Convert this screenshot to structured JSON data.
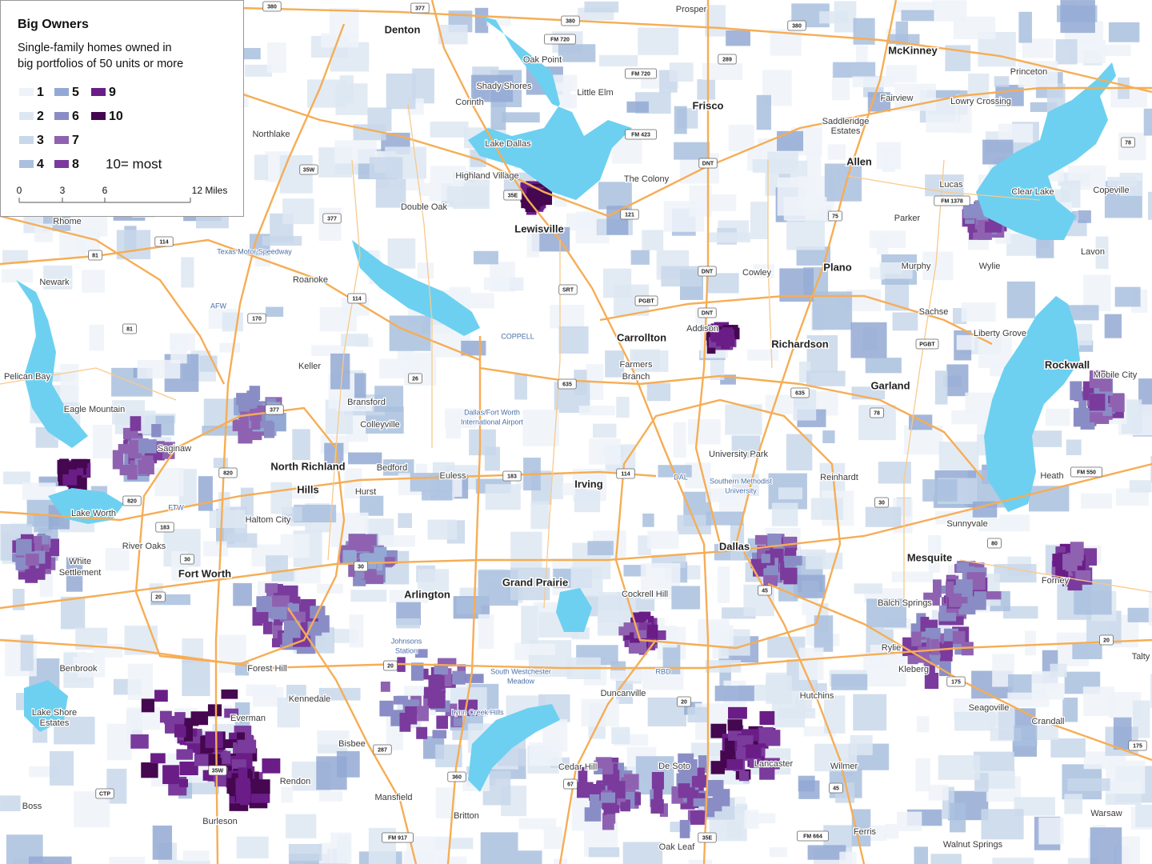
{
  "legend": {
    "title": "Big Owners",
    "subtitle_lines": [
      "Single-family homes owned in",
      "big portfolios of 50 units or more"
    ],
    "classes": [
      {
        "label": "1",
        "color": "#eef3f9"
      },
      {
        "label": "2",
        "color": "#dde7f2"
      },
      {
        "label": "3",
        "color": "#c8d7ea"
      },
      {
        "label": "4",
        "color": "#a9c0de"
      },
      {
        "label": "5",
        "color": "#93a9d3"
      },
      {
        "label": "6",
        "color": "#8a8dc5"
      },
      {
        "label": "7",
        "color": "#8e62b1"
      },
      {
        "label": "8",
        "color": "#7a3b9d"
      },
      {
        "label": "9",
        "color": "#6a1d86"
      },
      {
        "label": "10",
        "color": "#45074f"
      }
    ],
    "note": "10= most",
    "scale_labels": [
      "0",
      "3",
      "6",
      "12 Miles"
    ]
  },
  "major_cities": [
    "Denton",
    "McKinney",
    "Frisco",
    "Allen",
    "Lewisville",
    "Plano",
    "Carrollton",
    "Richardson",
    "Rockwall",
    "Garland",
    "North Richland",
    "Hills",
    "Irving",
    "Dallas",
    "Fort Worth",
    "Mesquite",
    "Grand Prairie",
    "Arlington"
  ],
  "towns": [
    "Prosper",
    "Oak Point",
    "Shady Shores",
    "Little Elm",
    "Corinth",
    "Lake Dallas",
    "Highland Village",
    "The Colony",
    "Fairview",
    "Lowry Crossing",
    "Princeton",
    "Lucas",
    "Clear Lake",
    "Copeville",
    "Parker",
    "Double Oak",
    "Northlake",
    "Rhome",
    "Newark",
    "Roanoke",
    "Murphy",
    "Wylie",
    "Lavon",
    "Cowley",
    "Addison",
    "Sachse",
    "Keller",
    "Farmers",
    "Branch",
    "Eagle Mountain",
    "Bransford",
    "Colleyville",
    "Saginaw",
    "Bedford",
    "Euless",
    "Hurst",
    "University Park",
    "Reinhardt",
    "Heath",
    "Lake Worth",
    "Haltom City",
    "Sunnyvale",
    "River Oaks",
    "White",
    "Settlement",
    "Forney",
    "Cockrell Hill",
    "Balch Springs",
    "Forest Hill",
    "Benbrook",
    "Kennedale",
    "Duncanville",
    "Hutchins",
    "Everman",
    "Crandall",
    "Bisbee",
    "Cedar Hill",
    "De Soto",
    "Lancaster",
    "Wilmer",
    "Rendon",
    "Mansfield",
    "Burleson",
    "Boss",
    "Britton",
    "Ferris",
    "Oak Leaf",
    "Warsaw",
    "Walnut Springs",
    "Talty",
    "Kleberg",
    "Seagoville",
    "Rylie",
    "Pelican Bay",
    "Lake Shore",
    "Estates",
    "Liberty Grove",
    "Mobile City",
    "Saddleridge",
    "Estates"
  ],
  "minor_labels": [
    "Johnsons",
    "Station",
    "Lynn Creek Hills",
    "South Westchester",
    "Meadow",
    "COPPELL",
    "Dallas/Fort Worth",
    "International Airport",
    "Southern Methodist",
    "University",
    "Texas Motor Speedway",
    "AFW",
    "FTW",
    "DAL",
    "RBD"
  ],
  "shields": [
    "380",
    "377",
    "380",
    "380",
    "289",
    "FM 720",
    "FM 720",
    "FM 423",
    "DNT",
    "DNT",
    "DNT",
    "35W",
    "35E",
    "121",
    "377",
    "114",
    "75",
    "FM 1378",
    "78",
    "SRT",
    "PGBT",
    "PGBT",
    "635",
    "635",
    "26",
    "170",
    "114",
    "81",
    "81",
    "377",
    "820",
    "820",
    "183",
    "183",
    "114",
    "30",
    "30",
    "30",
    "20",
    "20",
    "20",
    "20",
    "35W",
    "45",
    "45",
    "175",
    "80",
    "FM 550",
    "78",
    "287",
    "360",
    "67",
    "35E",
    "FM 917",
    "FM 664",
    "CTP",
    "175"
  ]
}
